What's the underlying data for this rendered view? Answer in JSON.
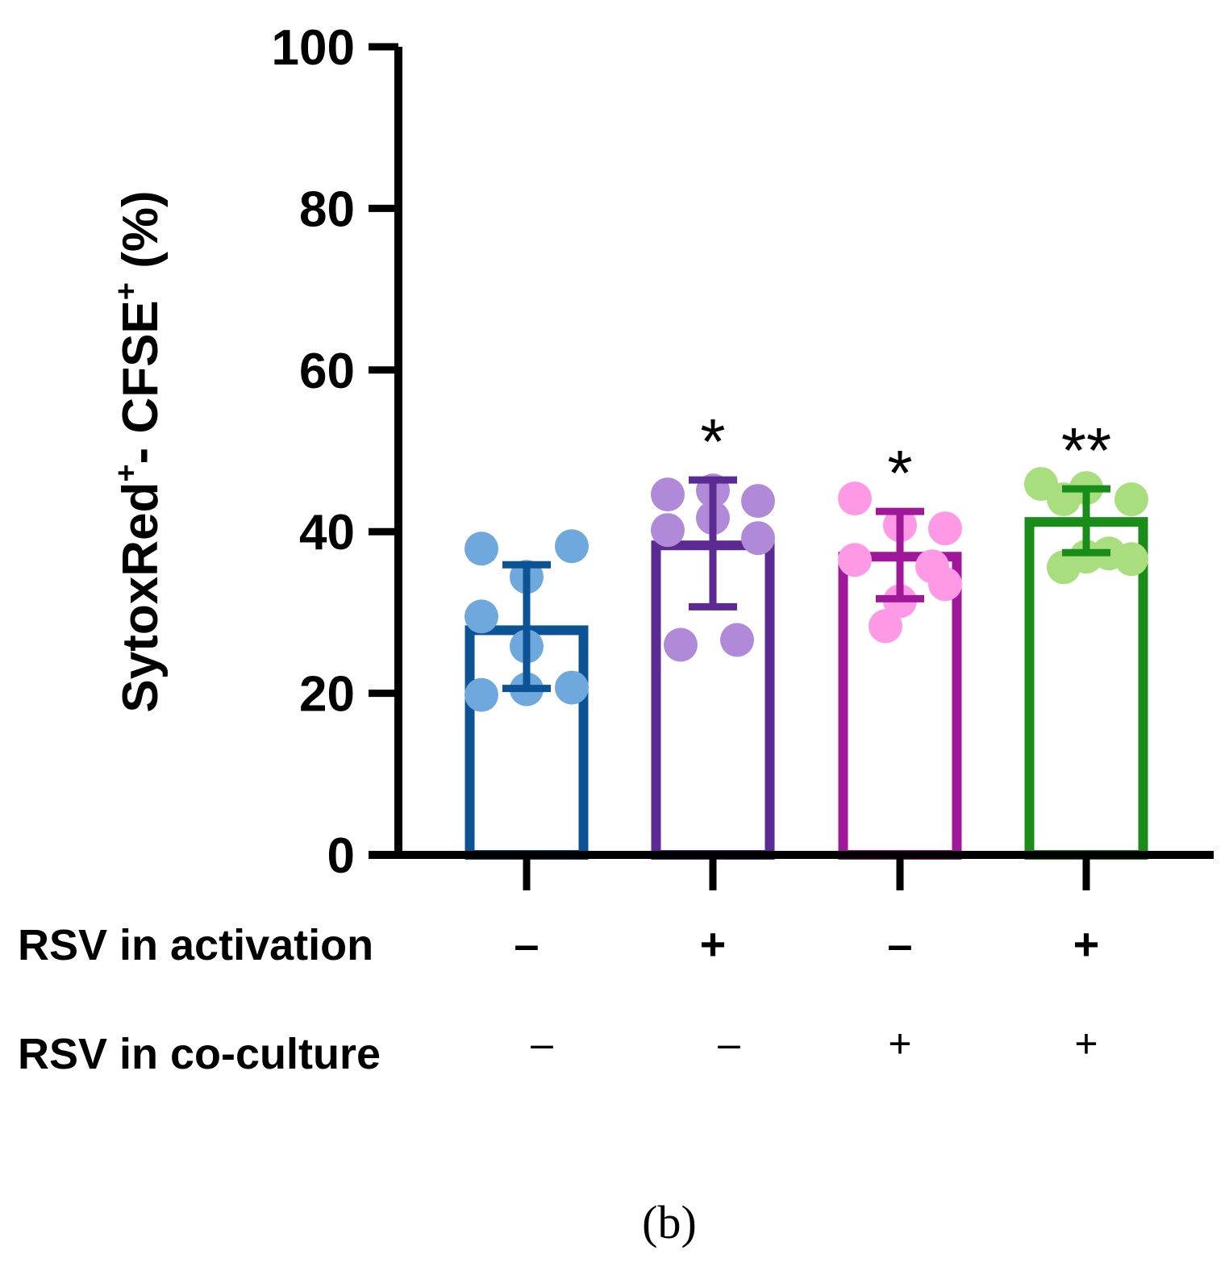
{
  "panel_label": "(b)",
  "chart_data": {
    "type": "bar",
    "title": "",
    "ylabel_parts": {
      "a": "SytoxRed",
      "sup1": "+",
      "b": "- CFSE",
      "sup2": "+",
      "c": " (%)"
    },
    "ylim": [
      0,
      100
    ],
    "yticks": [
      "0",
      "20",
      "40",
      "60",
      "80",
      "100"
    ],
    "grid": false,
    "legend": "none",
    "factor_rows": [
      {
        "label": "RSV in activation",
        "values": [
          "–",
          "+",
          "–",
          "+"
        ],
        "style": "bold"
      },
      {
        "label": "RSV in co-culture",
        "values": [
          "–",
          "–",
          "+",
          "+"
        ],
        "style": "thin"
      }
    ],
    "groups": [
      {
        "mean": 27.8,
        "sd_low": 20.6,
        "sd_high": 35.9,
        "color": "#0b5394",
        "point_color": "#6fa8dc",
        "points": [
          37.9,
          38.2,
          34.4,
          29.5,
          25.8,
          19.8,
          20.5,
          20.7
        ],
        "significance": ""
      },
      {
        "mean": 38.3,
        "sd_low": 30.7,
        "sd_high": 46.4,
        "color": "#5b2a92",
        "point_color": "#b08ad8",
        "points": [
          44.6,
          45.1,
          43.8,
          41.7,
          40.2,
          39.2,
          26.0,
          26.6
        ],
        "significance": "*"
      },
      {
        "mean": 36.9,
        "sd_low": 31.7,
        "sd_high": 42.5,
        "color": "#a0189a",
        "point_color": "#ff99e6",
        "points": [
          44.1,
          40.8,
          40.4,
          36.5,
          33.5,
          31.4,
          28.3,
          35.7
        ],
        "significance": "*"
      },
      {
        "mean": 41.2,
        "sd_low": 37.4,
        "sd_high": 45.3,
        "color": "#1a8c1a",
        "point_color": "#a8de7d",
        "points": [
          45.9,
          45.4,
          44.0,
          44.0,
          36.6,
          35.6,
          36.9,
          37.3
        ],
        "significance": "**"
      }
    ]
  }
}
